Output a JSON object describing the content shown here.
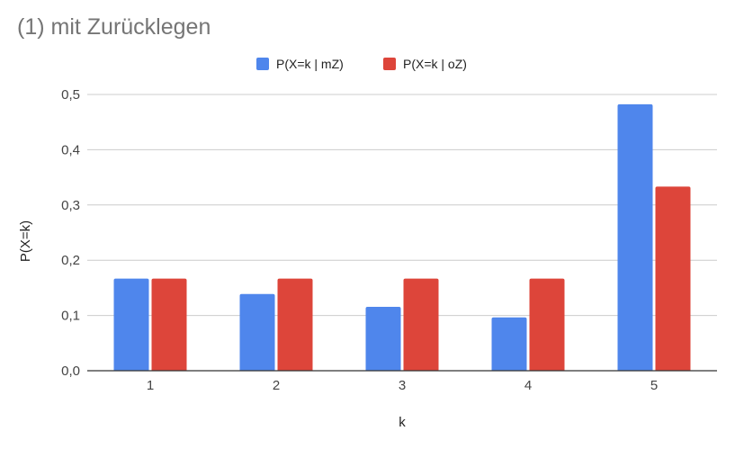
{
  "chart_data": {
    "type": "bar",
    "title": "(1) mit Zurücklegen",
    "xlabel": "k",
    "ylabel": "P(X=k)",
    "categories": [
      "1",
      "2",
      "3",
      "4",
      "5"
    ],
    "ylim": [
      0,
      0.5
    ],
    "yticks": [
      "0,0",
      "0,1",
      "0,2",
      "0,3",
      "0,4",
      "0,5"
    ],
    "grid": true,
    "legend_position": "top",
    "series": [
      {
        "name": "P(X=k | mZ)",
        "color": "#4f86ec",
        "values": [
          0.1667,
          0.1389,
          0.1157,
          0.0965,
          0.4823
        ]
      },
      {
        "name": "P(X=k | oZ)",
        "color": "#dd453a",
        "values": [
          0.1667,
          0.1667,
          0.1667,
          0.1667,
          0.3333
        ]
      }
    ]
  }
}
